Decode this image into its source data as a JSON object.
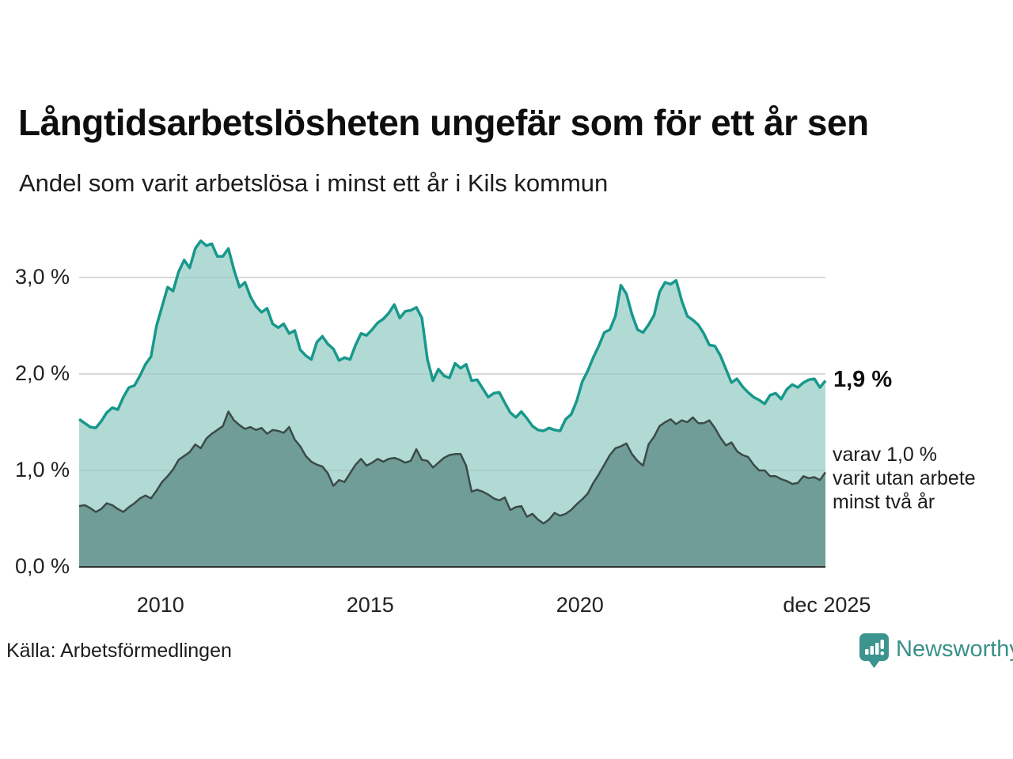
{
  "header": {
    "title": "Långtidsarbetslösheten ungefär som för ett år sen",
    "subtitle": "Andel som varit arbetslösa i minst ett år i Kils kommun"
  },
  "annotations": {
    "latest_total": "1,9 %",
    "secondary": "varav 1,0 %\nvarit utan arbete\nminst två år"
  },
  "footer": {
    "source": "Källa: Arbetsförmedlingen",
    "brand": "Newsworthy"
  },
  "colors": {
    "total_line": "#18988c",
    "total_fill": "#b2dad4",
    "two_year_line": "#3b4b48",
    "two_year_fill": "#709d97",
    "gridline": "#dcdcdc",
    "axis_line": "#2e2e2e",
    "brand_teal": "#3b948d"
  },
  "chart_data": {
    "type": "area",
    "title": "Långtidsarbetslösheten ungefär som för ett år sen",
    "subtitle": "Andel som varit arbetslösa i minst ett år i Kils kommun",
    "unit": "%",
    "x_range": [
      "jan 2008",
      "dec 2025"
    ],
    "ylim": [
      0,
      3.5
    ],
    "grid": true,
    "y_ticks": [
      {
        "label": "0,0 %",
        "value": 0
      },
      {
        "label": "1,0 %",
        "value": 1
      },
      {
        "label": "2,0 %",
        "value": 2
      },
      {
        "label": "3,0 %",
        "value": 3
      }
    ],
    "x_ticks": [
      {
        "label": "2010",
        "f": 0.109
      },
      {
        "label": "2015",
        "f": 0.39
      },
      {
        "label": "2020",
        "f": 0.671
      },
      {
        "label": "dec 2025",
        "f": 1.002
      }
    ],
    "series": [
      {
        "name": "Andel som varit arbetslösa minst ett år",
        "latest": 1.9,
        "color": "#18988c",
        "fill": "#b2dad4",
        "line_width": 3.5,
        "values": [
          1.53,
          1.49,
          1.45,
          1.44,
          1.51,
          1.6,
          1.65,
          1.63,
          1.76,
          1.86,
          1.88,
          1.98,
          2.1,
          2.18,
          2.5,
          2.7,
          2.9,
          2.86,
          3.06,
          3.18,
          3.1,
          3.3,
          3.38,
          3.33,
          3.35,
          3.22,
          3.22,
          3.3,
          3.08,
          2.9,
          2.95,
          2.8,
          2.7,
          2.64,
          2.68,
          2.52,
          2.48,
          2.52,
          2.42,
          2.45,
          2.25,
          2.19,
          2.15,
          2.33,
          2.39,
          2.31,
          2.26,
          2.14,
          2.17,
          2.15,
          2.3,
          2.42,
          2.4,
          2.46,
          2.53,
          2.57,
          2.63,
          2.72,
          2.58,
          2.65,
          2.66,
          2.69,
          2.58,
          2.15,
          1.93,
          2.05,
          1.98,
          1.96,
          2.11,
          2.06,
          2.1,
          1.93,
          1.94,
          1.85,
          1.76,
          1.8,
          1.81,
          1.7,
          1.6,
          1.55,
          1.61,
          1.54,
          1.46,
          1.42,
          1.41,
          1.44,
          1.42,
          1.41,
          1.53,
          1.58,
          1.72,
          1.92,
          2.03,
          2.17,
          2.29,
          2.43,
          2.46,
          2.6,
          2.92,
          2.83,
          2.62,
          2.46,
          2.43,
          2.51,
          2.61,
          2.85,
          2.95,
          2.93,
          2.97,
          2.76,
          2.6,
          2.56,
          2.51,
          2.42,
          2.3,
          2.29,
          2.19,
          2.05,
          1.91,
          1.95,
          1.87,
          1.81,
          1.76,
          1.73,
          1.69,
          1.78,
          1.8,
          1.74,
          1.84,
          1.89,
          1.86,
          1.91,
          1.94,
          1.95,
          1.86,
          1.93
        ]
      },
      {
        "name": "varav varit utan arbete minst två år",
        "latest": 1.0,
        "color": "#3b4b48",
        "fill": "#709d97",
        "line_width": 2.5,
        "values": [
          0.63,
          0.64,
          0.61,
          0.57,
          0.6,
          0.66,
          0.64,
          0.6,
          0.57,
          0.62,
          0.66,
          0.71,
          0.74,
          0.71,
          0.79,
          0.88,
          0.94,
          1.01,
          1.11,
          1.15,
          1.19,
          1.27,
          1.23,
          1.33,
          1.38,
          1.42,
          1.46,
          1.61,
          1.52,
          1.47,
          1.43,
          1.45,
          1.42,
          1.44,
          1.38,
          1.42,
          1.41,
          1.39,
          1.45,
          1.32,
          1.25,
          1.15,
          1.09,
          1.06,
          1.04,
          0.97,
          0.84,
          0.9,
          0.88,
          0.97,
          1.06,
          1.12,
          1.05,
          1.08,
          1.12,
          1.09,
          1.12,
          1.13,
          1.11,
          1.08,
          1.1,
          1.22,
          1.11,
          1.1,
          1.03,
          1.08,
          1.13,
          1.16,
          1.17,
          1.17,
          1.05,
          0.78,
          0.8,
          0.78,
          0.75,
          0.71,
          0.69,
          0.72,
          0.59,
          0.62,
          0.63,
          0.52,
          0.55,
          0.49,
          0.45,
          0.49,
          0.56,
          0.53,
          0.55,
          0.59,
          0.65,
          0.7,
          0.76,
          0.87,
          0.96,
          1.06,
          1.16,
          1.23,
          1.25,
          1.28,
          1.17,
          1.1,
          1.05,
          1.27,
          1.35,
          1.46,
          1.5,
          1.53,
          1.48,
          1.52,
          1.5,
          1.55,
          1.49,
          1.49,
          1.52,
          1.44,
          1.34,
          1.26,
          1.29,
          1.2,
          1.16,
          1.14,
          1.06,
          1.0,
          1.0,
          0.94,
          0.94,
          0.91,
          0.89,
          0.86,
          0.87,
          0.94,
          0.92,
          0.93,
          0.9,
          0.98
        ]
      }
    ]
  }
}
